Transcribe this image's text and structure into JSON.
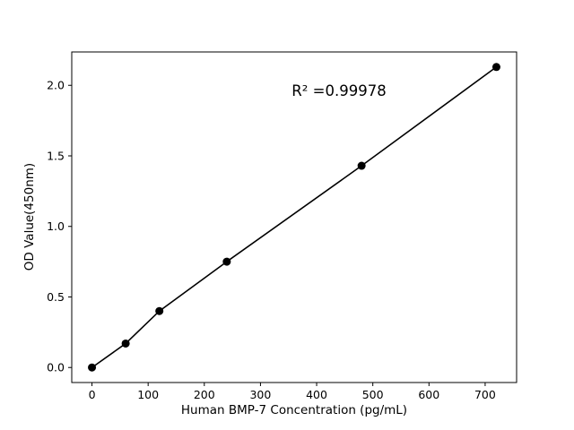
{
  "chart_data": {
    "type": "scatter",
    "x": [
      0,
      60,
      120,
      240,
      480,
      720
    ],
    "y": [
      0.0,
      0.17,
      0.4,
      0.75,
      1.43,
      2.13
    ],
    "series_note": "filled black circular markers connected by a straight black fit line",
    "annotation": "R² =0.99978",
    "title": "",
    "xlabel": "Human BMP-7 Concentration (pg/mL)",
    "ylabel": "OD Value(450nm)",
    "xticks": [
      0,
      100,
      200,
      300,
      400,
      500,
      600,
      700
    ],
    "yticks": [
      "0.0",
      "0.5",
      "1.0",
      "1.5",
      "2.0"
    ],
    "xlim": [
      -36,
      756
    ],
    "ylim": [
      -0.1065,
      2.2365
    ],
    "grid": false,
    "legend": "none",
    "marker_color": "#000000",
    "line_color": "#000000",
    "background_color": "#ffffff"
  }
}
